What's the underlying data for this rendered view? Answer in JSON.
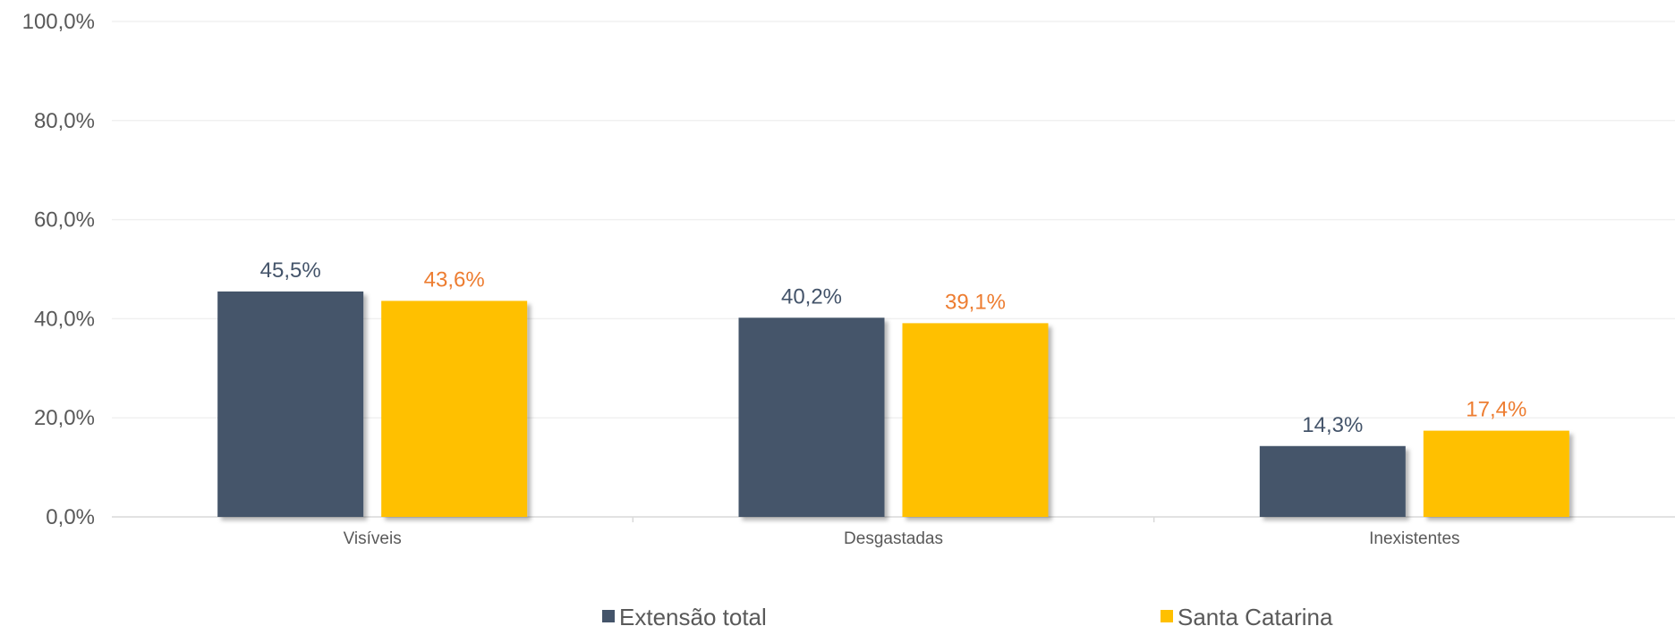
{
  "chart_data": {
    "type": "bar",
    "categories": [
      "Visíveis",
      "Desgastadas",
      "Inexistentes"
    ],
    "series": [
      {
        "name": "Extensão total",
        "values": [
          45.5,
          40.2,
          14.3
        ],
        "labels": [
          "45,5%",
          "40,2%",
          "14,3%"
        ],
        "color": "#44546a",
        "label_color": "#44546a"
      },
      {
        "name": "Santa Catarina",
        "values": [
          43.6,
          39.1,
          17.4
        ],
        "labels": [
          "43,6%",
          "39,1%",
          "17,4%"
        ],
        "color": "#ffc000",
        "label_color": "#ed7d31"
      }
    ],
    "yticks": [
      0,
      20,
      40,
      60,
      80,
      100
    ],
    "ytick_labels": [
      "0,0%",
      "20,0%",
      "40,0%",
      "60,0%",
      "80,0%",
      "100,0%"
    ],
    "ylim": [
      0,
      100
    ],
    "grid": true,
    "legend_position": "bottom",
    "title": "",
    "xlabel": "",
    "ylabel": ""
  }
}
